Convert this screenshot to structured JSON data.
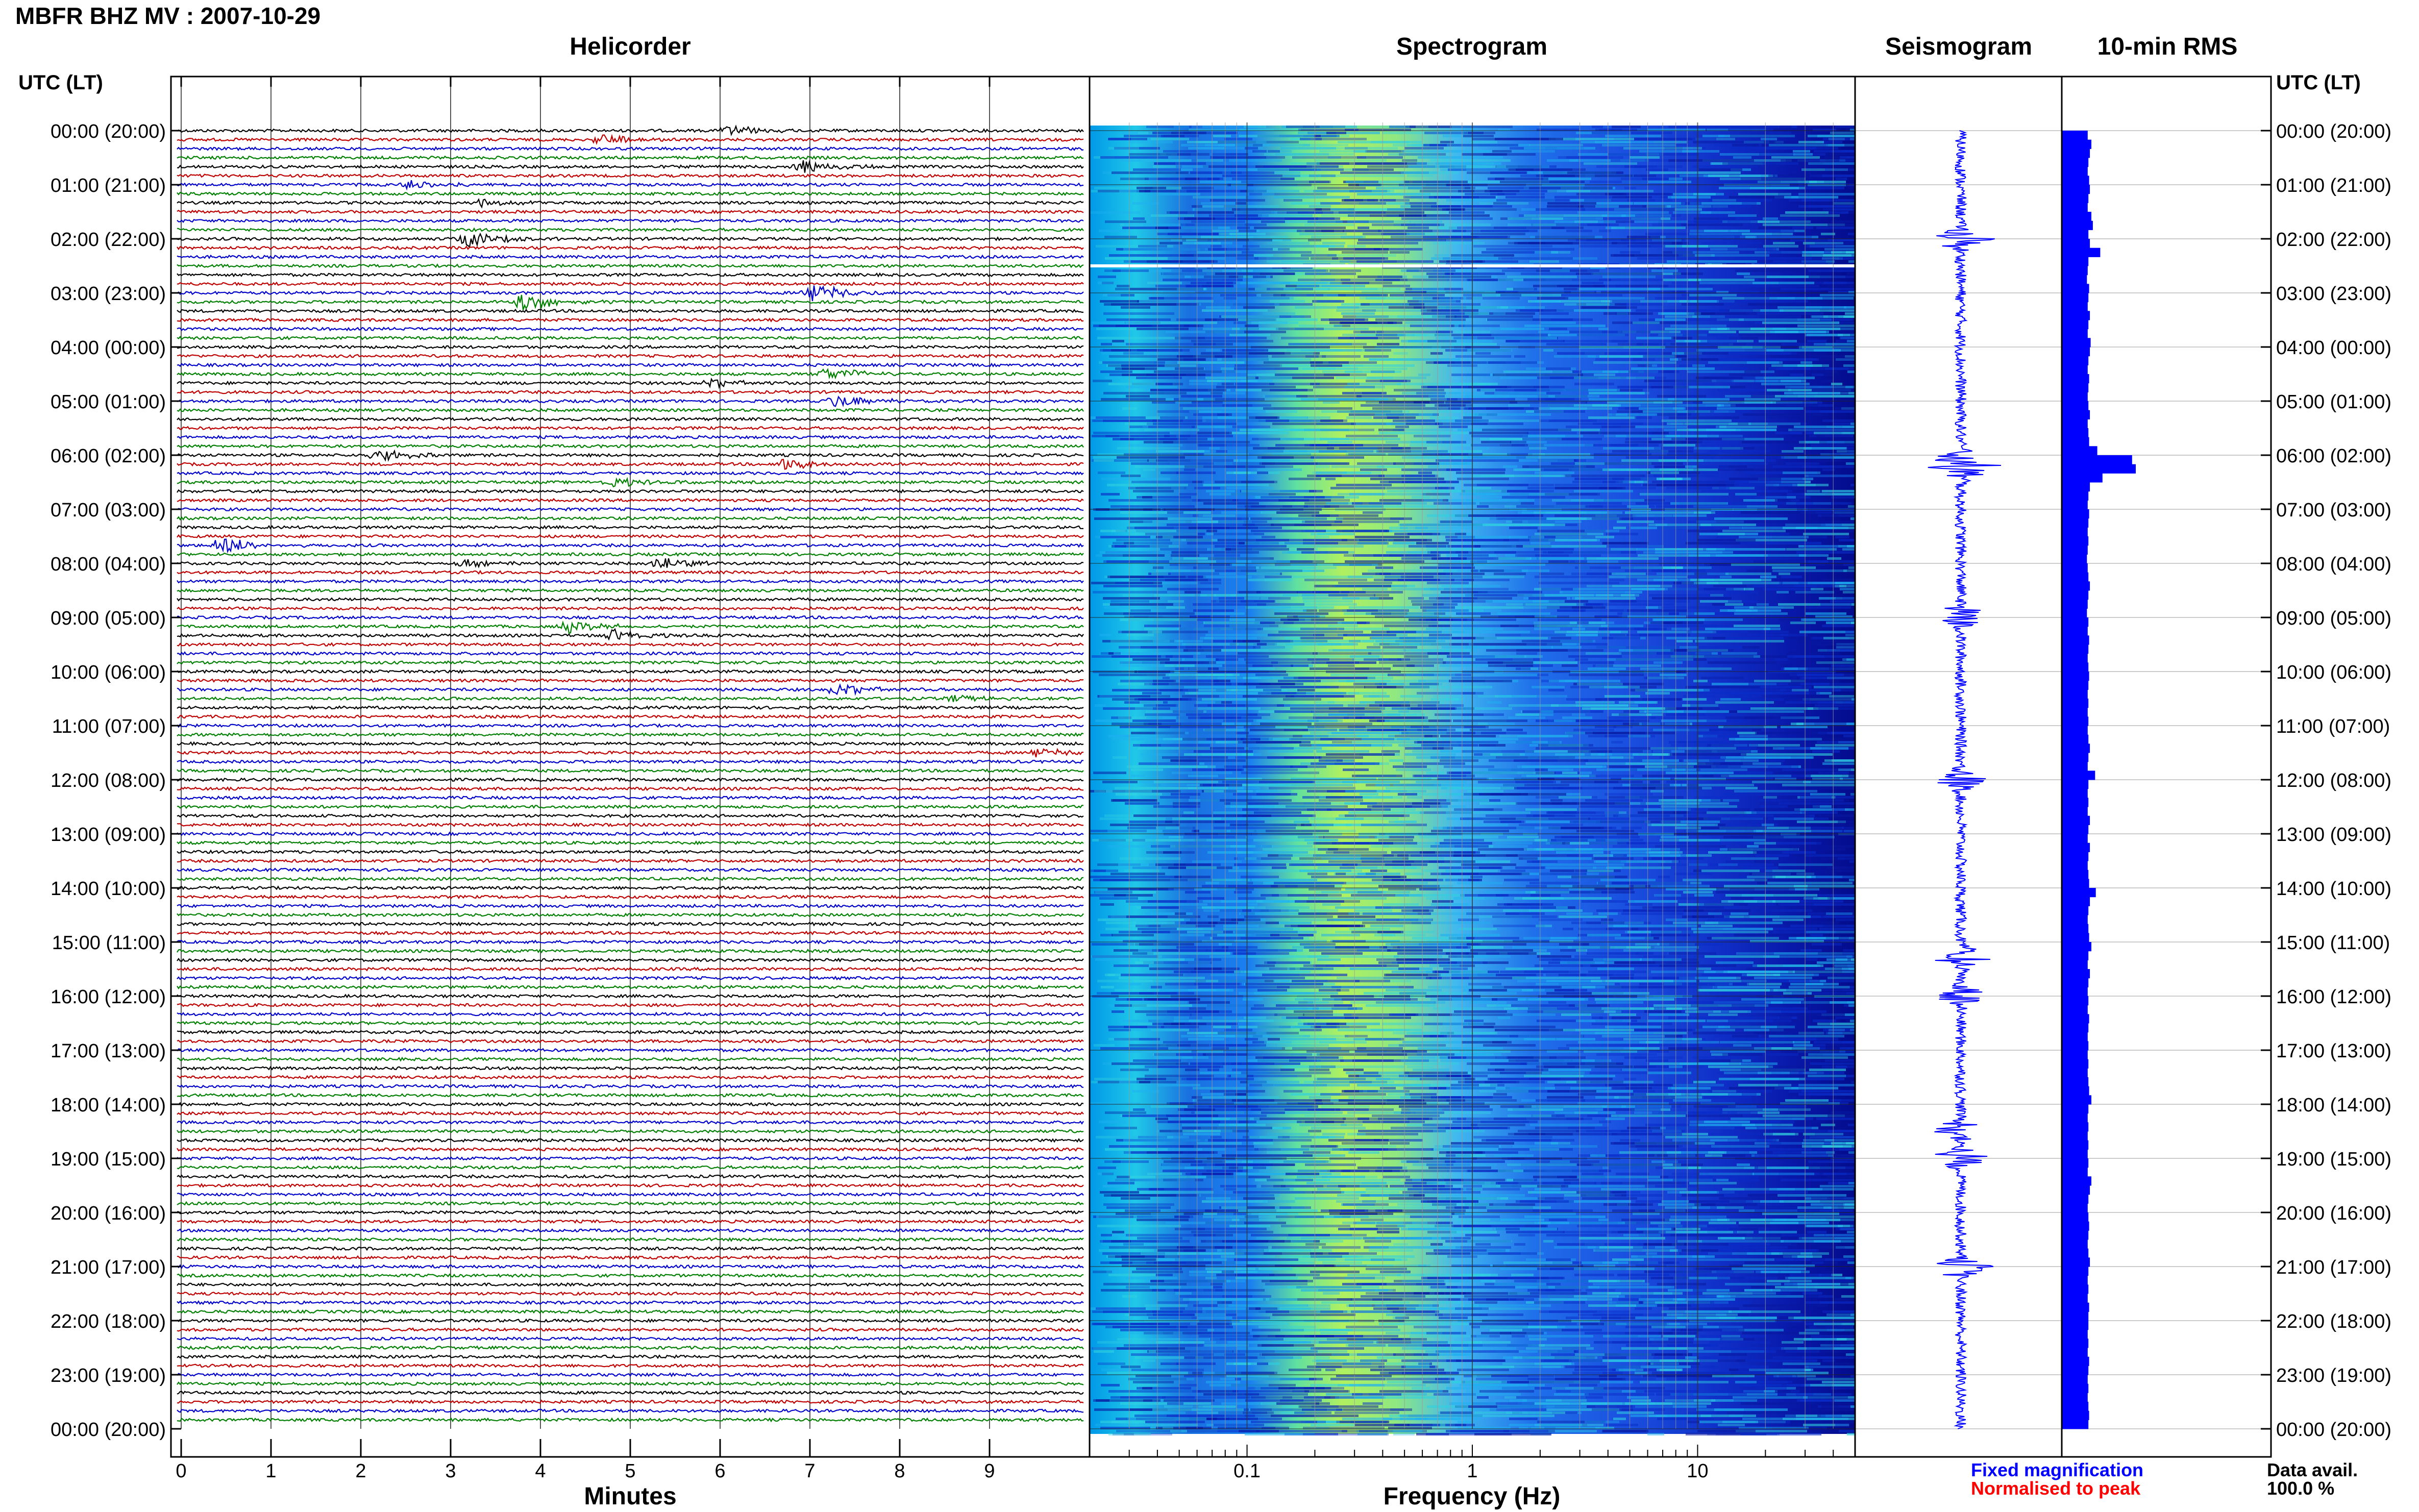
{
  "header": {
    "title": "MBFR BHZ MV : 2007-10-29"
  },
  "panels": {
    "helicorder": "Helicorder",
    "spectrogram": "Spectrogram",
    "seismogram": "Seismogram",
    "rms": "10-min RMS"
  },
  "time_axis": {
    "header_label": "UTC (LT)",
    "labels": [
      "00:00 (20:00)",
      "01:00 (21:00)",
      "02:00 (22:00)",
      "03:00 (23:00)",
      "04:00 (00:00)",
      "05:00 (01:00)",
      "06:00 (02:00)",
      "07:00 (03:00)",
      "08:00 (04:00)",
      "09:00 (05:00)",
      "10:00 (06:00)",
      "11:00 (07:00)",
      "12:00 (08:00)",
      "13:00 (09:00)",
      "14:00 (10:00)",
      "15:00 (11:00)",
      "16:00 (12:00)",
      "17:00 (13:00)",
      "18:00 (14:00)",
      "19:00 (15:00)",
      "20:00 (16:00)",
      "21:00 (17:00)",
      "22:00 (18:00)",
      "23:00 (19:00)",
      "00:00 (20:00)"
    ]
  },
  "footer": {
    "fixed_magnification": "Fixed magnification",
    "normalised_to_peak": "Normalised to peak",
    "data_avail_label": "Data avail.",
    "data_avail_value": "100.0 %"
  },
  "colors": {
    "trace_cycle": [
      "#000000",
      "#c00000",
      "#0000cc",
      "#008000"
    ],
    "seismogram": "#0000ff",
    "rms_bar": "#0000ff",
    "legend_fixed": "#0000ff",
    "legend_norm": "#ff0000"
  },
  "chart_data": [
    {
      "type": "line",
      "name": "helicorder",
      "title": "Helicorder",
      "xlabel": "Minutes",
      "x_ticks": [
        0,
        1,
        2,
        3,
        4,
        5,
        6,
        7,
        8,
        9
      ],
      "xlim": [
        0,
        10
      ],
      "traces_per_hour": 6,
      "hours": 24,
      "events": [
        {
          "trace": 0,
          "minute": 6.1,
          "amp": 0.5
        },
        {
          "trace": 1,
          "minute": 4.7,
          "amp": 0.6
        },
        {
          "trace": 4,
          "minute": 6.9,
          "amp": 0.8
        },
        {
          "trace": 6,
          "minute": 2.5,
          "amp": 0.4
        },
        {
          "trace": 8,
          "minute": 3.3,
          "amp": 0.4
        },
        {
          "trace": 12,
          "minute": 3.2,
          "amp": 0.8
        },
        {
          "trace": 18,
          "minute": 7.0,
          "amp": 1.0
        },
        {
          "trace": 19,
          "minute": 3.8,
          "amp": 1.0
        },
        {
          "trace": 27,
          "minute": 7.2,
          "amp": 0.7
        },
        {
          "trace": 28,
          "minute": 5.9,
          "amp": 0.4
        },
        {
          "trace": 30,
          "minute": 7.3,
          "amp": 0.7
        },
        {
          "trace": 36,
          "minute": 2.2,
          "amp": 0.6
        },
        {
          "trace": 37,
          "minute": 6.7,
          "amp": 0.6
        },
        {
          "trace": 39,
          "minute": 4.8,
          "amp": 0.5
        },
        {
          "trace": 46,
          "minute": 0.45,
          "amp": 0.9
        },
        {
          "trace": 48,
          "minute": 5.3,
          "amp": 0.9
        },
        {
          "trace": 48,
          "minute": 3.1,
          "amp": 0.4
        },
        {
          "trace": 55,
          "minute": 4.3,
          "amp": 0.6
        },
        {
          "trace": 56,
          "minute": 4.8,
          "amp": 0.6
        },
        {
          "trace": 62,
          "minute": 7.3,
          "amp": 0.6
        },
        {
          "trace": 63,
          "minute": 8.6,
          "amp": 0.4
        },
        {
          "trace": 69,
          "minute": 9.5,
          "amp": 0.5
        }
      ]
    },
    {
      "type": "heatmap",
      "name": "spectrogram",
      "title": "Spectrogram",
      "xlabel": "Frequency (Hz)",
      "x_scale": "log",
      "x_ticks": [
        0.1,
        1,
        10
      ],
      "xlim": [
        0.02,
        50
      ],
      "peak_frequency_hz": 0.35,
      "colormap": [
        "#00008b",
        "#0000ff",
        "#0080ff",
        "#00ffff",
        "#80ff80",
        "#ffff00"
      ]
    },
    {
      "type": "line",
      "name": "seismogram",
      "title": "Seismogram",
      "bursts_hour": [
        2.0,
        6.1,
        6.3,
        9.0,
        12.0,
        15.3,
        16.0,
        18.5,
        19.0,
        21.0
      ]
    },
    {
      "type": "bar",
      "name": "rms",
      "title": "10-min RMS",
      "values": [
        0.35,
        0.4,
        0.38,
        0.36,
        0.35,
        0.37,
        0.38,
        0.36,
        0.35,
        0.4,
        0.42,
        0.36,
        0.38,
        0.52,
        0.36,
        0.35,
        0.34,
        0.37,
        0.36,
        0.35,
        0.38,
        0.36,
        0.35,
        0.39,
        0.38,
        0.36,
        0.35,
        0.37,
        0.36,
        0.35,
        0.36,
        0.38,
        0.35,
        0.36,
        0.37,
        0.48,
        0.95,
        1.0,
        0.55,
        0.38,
        0.36,
        0.35,
        0.37,
        0.36,
        0.35,
        0.36,
        0.35,
        0.34,
        0.35,
        0.36,
        0.38,
        0.36,
        0.35,
        0.34,
        0.36,
        0.35,
        0.37,
        0.36,
        0.35,
        0.36,
        0.37,
        0.36,
        0.35,
        0.36,
        0.35,
        0.36,
        0.35,
        0.36,
        0.38,
        0.36,
        0.35,
        0.45,
        0.36,
        0.35,
        0.36,
        0.35,
        0.38,
        0.36,
        0.35,
        0.38,
        0.36,
        0.35,
        0.36,
        0.37,
        0.46,
        0.38,
        0.36,
        0.35,
        0.36,
        0.37,
        0.4,
        0.36,
        0.35,
        0.38,
        0.36,
        0.35,
        0.36,
        0.35,
        0.37,
        0.36,
        0.35,
        0.36,
        0.35,
        0.36,
        0.35,
        0.36,
        0.37,
        0.4,
        0.36,
        0.35,
        0.36,
        0.35,
        0.36,
        0.35,
        0.36,
        0.35,
        0.4,
        0.38,
        0.36,
        0.35,
        0.36,
        0.37,
        0.36,
        0.35,
        0.36,
        0.38,
        0.36,
        0.35,
        0.36,
        0.35,
        0.37,
        0.36,
        0.36,
        0.35,
        0.36,
        0.35,
        0.37,
        0.36,
        0.35,
        0.36,
        0.35,
        0.36,
        0.37,
        0.36
      ]
    }
  ]
}
